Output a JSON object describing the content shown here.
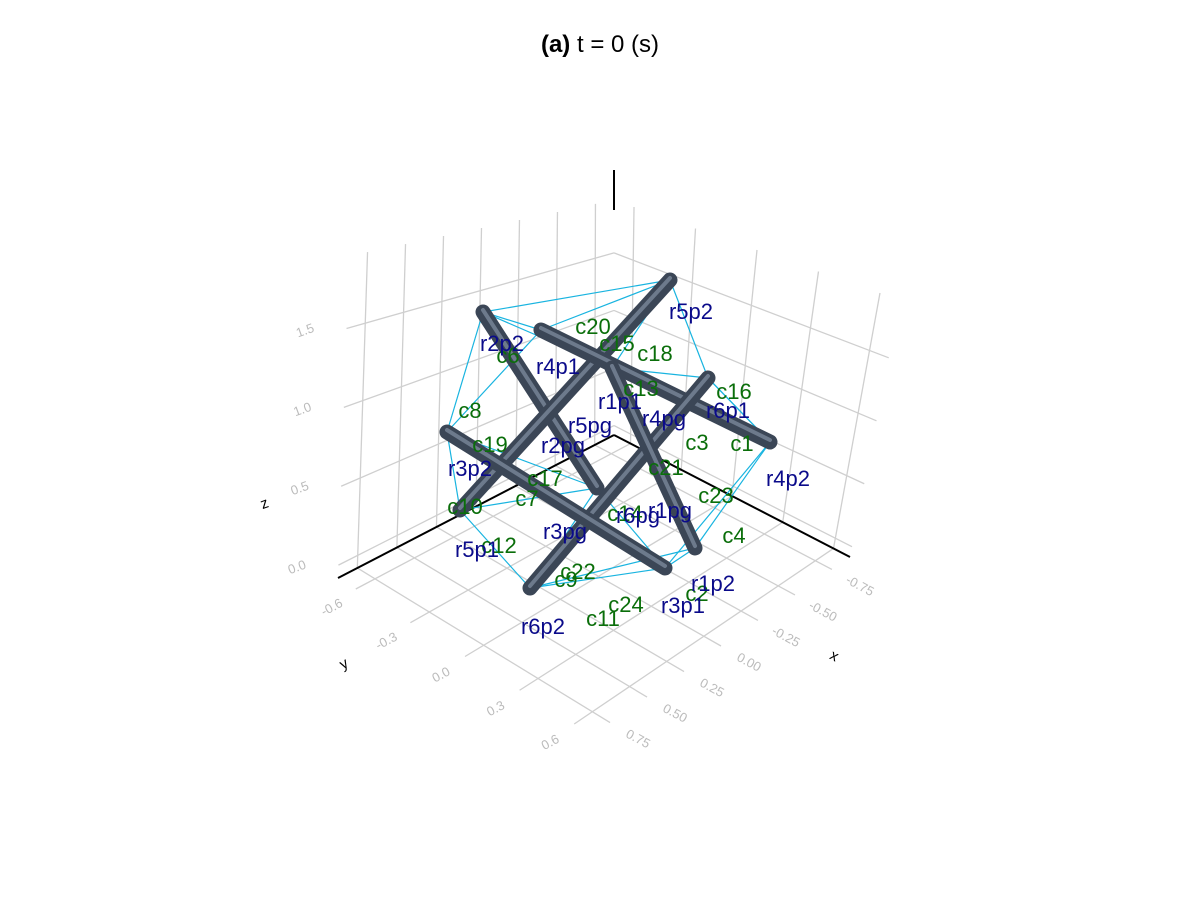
{
  "title": {
    "prefix": "(a)",
    "text": "t = 0 (s)"
  },
  "axes": {
    "x": {
      "label": "x",
      "ticks": [
        "-0.75",
        "-0.50",
        "-0.25",
        "0.00",
        "0.25",
        "0.50",
        "0.75"
      ]
    },
    "y": {
      "label": "y",
      "ticks": [
        "-0.6",
        "-0.3",
        "0.0",
        "0.3",
        "0.6"
      ]
    },
    "z": {
      "label": "z",
      "ticks": [
        "0.0",
        "0.5",
        "1.0",
        "1.5"
      ]
    }
  },
  "rod_labels": [
    "r5p2",
    "r2p2",
    "r4p1",
    "r1p1",
    "r4pg",
    "r6p1",
    "r5pg",
    "r2pg",
    "r3p2",
    "r4p2",
    "r3pg",
    "r6pg",
    "r1pg",
    "r5p1",
    "r1p2",
    "r3p1",
    "r6p2"
  ],
  "cable_labels": [
    "c20",
    "c15",
    "c18",
    "c6",
    "c13",
    "c16",
    "c8",
    "c3",
    "c1",
    "c19",
    "c21",
    "c17",
    "c7",
    "c23",
    "c10",
    "c14",
    "c4",
    "c12",
    "c22",
    "c9",
    "c24",
    "c2",
    "c11"
  ]
}
